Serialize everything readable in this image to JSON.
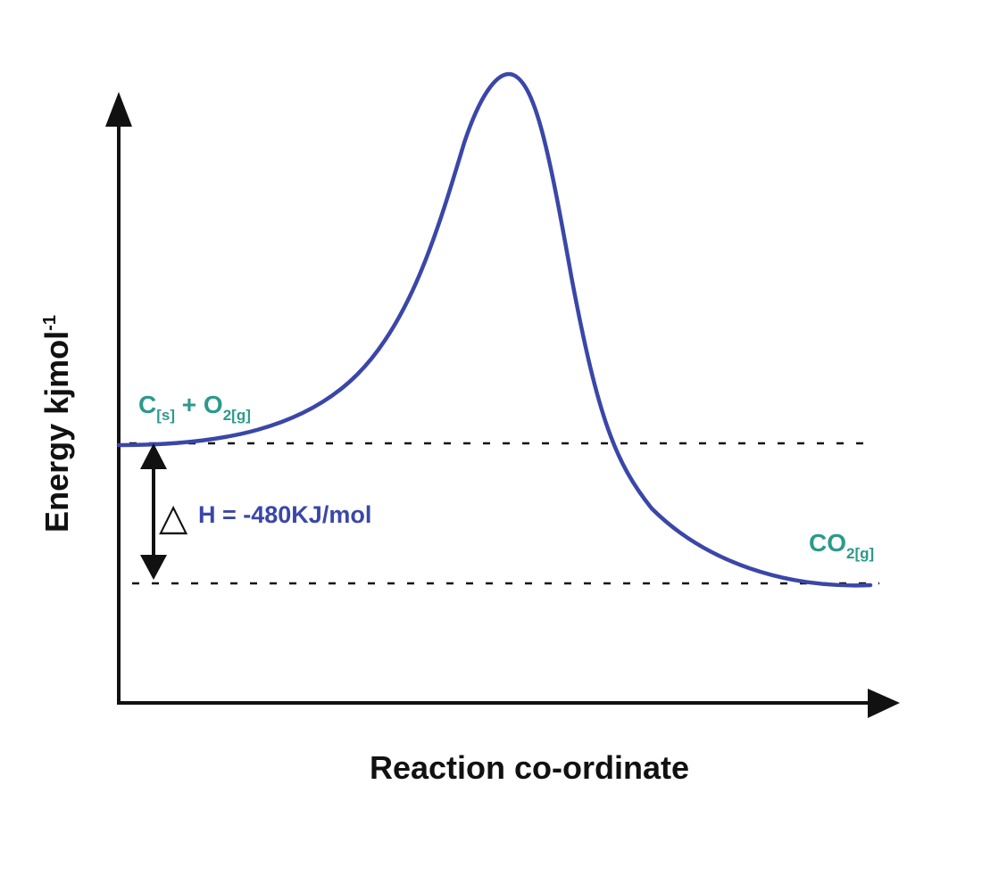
{
  "diagram": {
    "y_axis_label": {
      "main": "Energy kjmol",
      "sup": "-1"
    },
    "x_axis_label": "Reaction co-ordinate",
    "reactants": {
      "c": "C",
      "c_sub": "[s]",
      "plus": " + O",
      "o_sub": "2[g]"
    },
    "product": {
      "main": "CO",
      "sub": "2[g]"
    },
    "enthalpy": {
      "symbol": "△",
      "text": "H = -480KJ/mol"
    },
    "colors": {
      "curve": "#3a47a8",
      "species_label": "#2b9a8c",
      "delta_h": "#3a47a8",
      "axis": "#111111"
    }
  }
}
